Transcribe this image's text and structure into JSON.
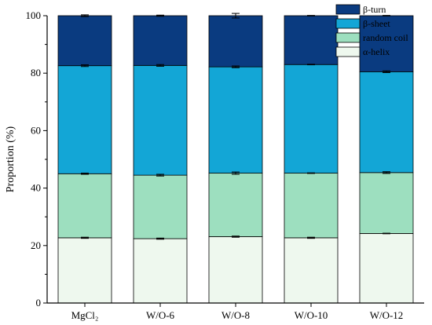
{
  "chart_data": {
    "type": "bar",
    "stacked": true,
    "title": "",
    "xlabel": "",
    "ylabel": "Proportion (%)",
    "ylim": [
      0,
      100
    ],
    "yticks": [
      0,
      20,
      40,
      60,
      80,
      100
    ],
    "grid": false,
    "legend_position": "top-right",
    "categories": [
      "MgCl₂",
      "W/O-6",
      "W/O-8",
      "W/O-10",
      "W/O-12"
    ],
    "series": [
      {
        "name": "α-helix",
        "color": "#eef8ee",
        "values": [
          22.7,
          22.4,
          23.1,
          22.7,
          24.2
        ],
        "errors": [
          0.2,
          0.2,
          0.2,
          0.2,
          0.1
        ]
      },
      {
        "name": "random coil",
        "color": "#9ddfbf",
        "values": [
          22.3,
          22.1,
          22.1,
          22.5,
          21.2
        ],
        "errors": [
          0.2,
          0.3,
          0.4,
          0.1,
          0.3
        ]
      },
      {
        "name": "β-sheet",
        "color": "#13a6d6",
        "values": [
          37.6,
          38.2,
          37.0,
          37.8,
          35.1
        ],
        "errors": [
          0.3,
          0.3,
          0.3,
          0.1,
          0.3
        ]
      },
      {
        "name": "β-turn",
        "color": "#0a3b80",
        "values": [
          17.4,
          17.3,
          17.8,
          17.0,
          19.5
        ],
        "errors": [
          0.3,
          0.2,
          0.8,
          0.1,
          0.1
        ]
      }
    ]
  }
}
